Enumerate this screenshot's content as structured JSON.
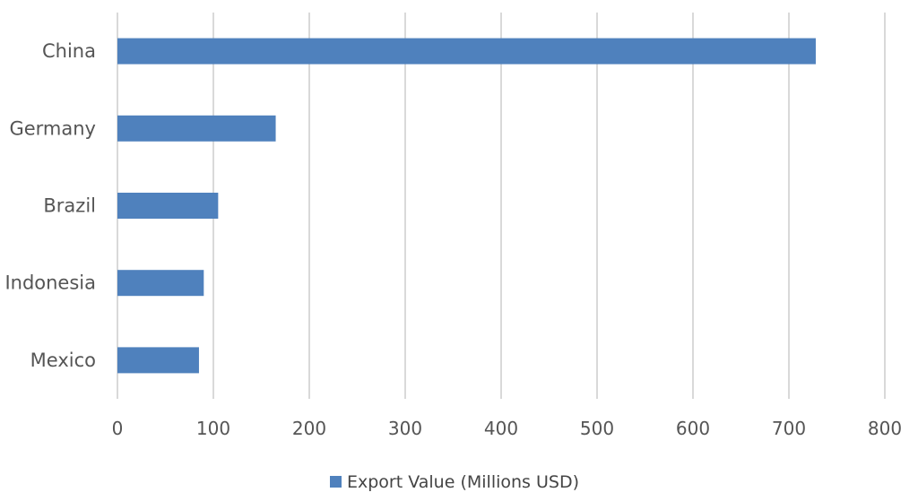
{
  "chart_data": {
    "type": "bar",
    "orientation": "horizontal",
    "categories": [
      "China",
      "Germany",
      "Brazil",
      "Indonesia",
      "Mexico"
    ],
    "series": [
      {
        "name": "Export Value (Millions USD)",
        "values": [
          728,
          165,
          105,
          90,
          85
        ],
        "color": "#4F81BD"
      }
    ],
    "xlim": [
      0,
      800
    ],
    "x_ticks": [
      0,
      100,
      200,
      300,
      400,
      500,
      600,
      700,
      800
    ],
    "grid": true,
    "legend_position": "bottom"
  },
  "colors": {
    "grid": "#D9D9D9",
    "bar": "#4F81BD",
    "text": "#595959"
  }
}
